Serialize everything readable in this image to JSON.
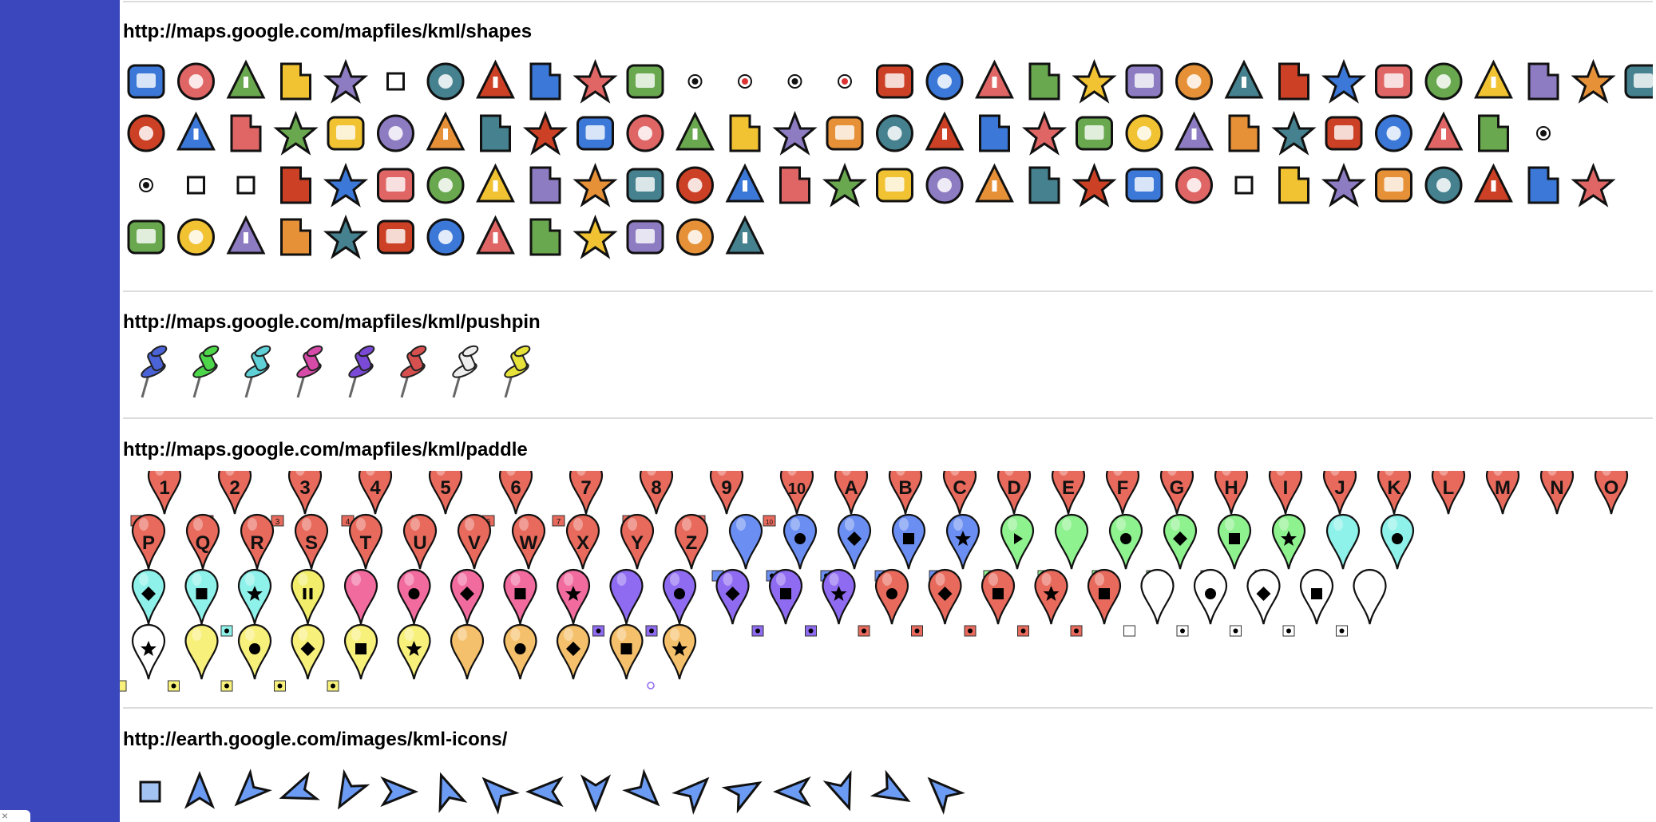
{
  "sections": [
    {
      "id": "shapes",
      "title": "http://maps.google.com/mapfiles/kml/shapes"
    },
    {
      "id": "pushpin",
      "title": "http://maps.google.com/mapfiles/kml/pushpin"
    },
    {
      "id": "paddle",
      "title": "http://maps.google.com/mapfiles/kml/paddle"
    },
    {
      "id": "kml-icons",
      "title": "http://earth.google.com/images/kml-icons/"
    }
  ],
  "close_glyph": "×",
  "shapes_icons": [
    "airport",
    "arrow-reverse",
    "arrow",
    "arts",
    "bars",
    "cabs-small-square",
    "bus",
    "cabs",
    "camera",
    "campfire",
    "campground",
    "star-small-1",
    "star-small-2",
    "star-small-3",
    "star-small-4",
    "caution",
    "church",
    "coffee",
    "convenience",
    "cross-hairs-1",
    "cross-hairs-2",
    "cycling",
    "dining",
    "dollar",
    "donut",
    "earthquake",
    "electronics",
    "euro",
    "falling-rocks",
    "ferry",
    "firedept",
    "fishing",
    "flag",
    "forbidden",
    "gas-stations",
    "golf",
    "grocery",
    "heliport",
    "highway",
    "hiker",
    "homegardenbusiness",
    "horsebackriding",
    "hospitals",
    "info",
    "info-i",
    "info-circle",
    "lodging",
    "man",
    "marina",
    "mechanic",
    "motorcycling",
    "mountains",
    "movies",
    "open-diamond",
    "parking-lot",
    "parks",
    "pharmacy",
    "phone",
    "picnic",
    "placemark-circle",
    "placemark-dot",
    "placemark-square-small",
    "placemark-square",
    "play",
    "poi",
    "police",
    "polygon",
    "post-office",
    "rail",
    "ranger-station",
    "realestate",
    "interstate",
    "road-shield",
    "shaded-dot",
    "ruler",
    "sailing",
    "ski",
    "flag-small",
    "snowflake-dot",
    "shopping",
    "skiing",
    "snack-bar",
    "square",
    "star",
    "subway",
    "swimming",
    "target",
    "terrain",
    "toilets",
    "trail",
    "tram",
    "triangle",
    "truck",
    "volcano",
    "water",
    "wheel-chair-access-purple",
    "wheel-chair-access",
    "woman",
    "yen",
    "sunny",
    "partly-cloudy",
    "snowflake",
    "rainy",
    "thunderstorm"
  ],
  "pushpin_icons": [
    {
      "name": "blue-pushpin",
      "color": "#4a63d6"
    },
    {
      "name": "grn-pushpin",
      "color": "#4ed64a"
    },
    {
      "name": "ltblu-pushpin",
      "color": "#5ed0d6"
    },
    {
      "name": "pink-pushpin",
      "color": "#d64aa8"
    },
    {
      "name": "purple-pushpin",
      "color": "#7a4ad6"
    },
    {
      "name": "red-pushpin",
      "color": "#d65050"
    },
    {
      "name": "wht-pushpin",
      "color": "#eeeeee"
    },
    {
      "name": "ylw-pushpin",
      "color": "#e6e23a"
    }
  ],
  "paddle_rows": [
    [
      {
        "label": "1",
        "color": "#e86a5c",
        "small": "1"
      },
      {
        "label": "2",
        "color": "#e86a5c",
        "small": "2"
      },
      {
        "label": "3",
        "color": "#e86a5c",
        "small": "3"
      },
      {
        "label": "4",
        "color": "#e86a5c",
        "small": "4"
      },
      {
        "label": "5",
        "color": "#e86a5c",
        "small": "5"
      },
      {
        "label": "6",
        "color": "#e86a5c",
        "small": "6"
      },
      {
        "label": "7",
        "color": "#e86a5c",
        "small": "7"
      },
      {
        "label": "8",
        "color": "#e86a5c",
        "small": "8"
      },
      {
        "label": "9",
        "color": "#e86a5c",
        "small": "9"
      },
      {
        "label": "10",
        "color": "#e86a5c",
        "small": "10"
      },
      {
        "label": "A",
        "color": "#e86a5c"
      },
      {
        "label": "B",
        "color": "#e86a5c"
      },
      {
        "label": "C",
        "color": "#e86a5c"
      },
      {
        "label": "D",
        "color": "#e86a5c"
      },
      {
        "label": "E",
        "color": "#e86a5c"
      },
      {
        "label": "F",
        "color": "#e86a5c"
      },
      {
        "label": "G",
        "color": "#e86a5c"
      },
      {
        "label": "H",
        "color": "#e86a5c"
      },
      {
        "label": "I",
        "color": "#e86a5c"
      },
      {
        "label": "J",
        "color": "#e86a5c"
      },
      {
        "label": "K",
        "color": "#e86a5c"
      },
      {
        "label": "L",
        "color": "#e86a5c"
      },
      {
        "label": "M",
        "color": "#e86a5c"
      },
      {
        "label": "N",
        "color": "#e86a5c"
      },
      {
        "label": "O",
        "color": "#e86a5c"
      }
    ],
    [
      {
        "label": "P",
        "color": "#e86a5c"
      },
      {
        "label": "Q",
        "color": "#e86a5c"
      },
      {
        "label": "R",
        "color": "#e86a5c"
      },
      {
        "label": "S",
        "color": "#e86a5c"
      },
      {
        "label": "T",
        "color": "#e86a5c"
      },
      {
        "label": "U",
        "color": "#e86a5c"
      },
      {
        "label": "V",
        "color": "#e86a5c"
      },
      {
        "label": "W",
        "color": "#e86a5c"
      },
      {
        "label": "X",
        "color": "#e86a5c"
      },
      {
        "label": "Y",
        "color": "#e86a5c"
      },
      {
        "label": "Z",
        "color": "#e86a5c"
      },
      {
        "label": "",
        "color": "#6b8ef2",
        "smallshape": "blank"
      },
      {
        "shape": "circle",
        "color": "#6b8ef2",
        "smallshape": "circle"
      },
      {
        "shape": "diamond",
        "color": "#6b8ef2",
        "smallshape": "diamond"
      },
      {
        "shape": "square",
        "color": "#6b8ef2",
        "smallshape": "square"
      },
      {
        "shape": "star",
        "color": "#6b8ef2",
        "smallshape": "star"
      },
      {
        "shape": "play",
        "color": "#8ef28e",
        "smallshape": "play"
      },
      {
        "label": "",
        "color": "#8ef28e",
        "smallshape": "blank"
      },
      {
        "shape": "circle",
        "color": "#8ef28e",
        "smallshape": "circle"
      },
      {
        "shape": "diamond",
        "color": "#8ef28e",
        "smallshape": "diamond"
      },
      {
        "shape": "square",
        "color": "#8ef28e",
        "smallshape": "square"
      },
      {
        "shape": "star",
        "color": "#8ef28e",
        "smallshape": "star"
      },
      {
        "label": "",
        "color": "#8ef2ea"
      },
      {
        "shape": "circle",
        "color": "#8ef2ea"
      }
    ],
    [
      {
        "shape": "diamond",
        "color": "#8ef2ea"
      },
      {
        "shape": "square",
        "color": "#8ef2ea"
      },
      {
        "shape": "star",
        "color": "#8ef2ea",
        "smallshape": "pause"
      },
      {
        "shape": "pause",
        "color": "#f2ee6b"
      },
      {
        "label": "",
        "color": "#f26b9e"
      },
      {
        "shape": "circle",
        "color": "#f26b9e"
      },
      {
        "shape": "diamond",
        "color": "#f26b9e"
      },
      {
        "shape": "square",
        "color": "#f26b9e"
      },
      {
        "shape": "star",
        "color": "#f26b9e"
      },
      {
        "label": "",
        "color": "#8f6bf2",
        "smallshape": "circle-purple"
      },
      {
        "shape": "circle",
        "color": "#8f6bf2",
        "smallshape": "diamond-purple"
      },
      {
        "shape": "diamond",
        "color": "#8f6bf2"
      },
      {
        "shape": "square",
        "color": "#8f6bf2",
        "smallshape": "square-purple"
      },
      {
        "shape": "star",
        "color": "#8f6bf2",
        "smallshape": "star-purple"
      },
      {
        "shape": "circle",
        "color": "#e86a5c",
        "smallshape": "circle-red"
      },
      {
        "shape": "diamond",
        "color": "#e86a5c",
        "smallshape": "diamond-red"
      },
      {
        "shape": "square",
        "color": "#e86a5c",
        "smallshape": "square-red"
      },
      {
        "shape": "star",
        "color": "#e86a5c",
        "smallshape": "star-red"
      },
      {
        "shape": "square",
        "color": "#e86a5c",
        "smallshape": "square-red"
      },
      {
        "label": "",
        "color": "#ffffff",
        "smallshape": "blank-white"
      },
      {
        "shape": "circle",
        "color": "#ffffff",
        "smallshape": "circle-white"
      },
      {
        "shape": "diamond",
        "color": "#ffffff",
        "smallshape": "diamond-white"
      },
      {
        "shape": "square",
        "color": "#ffffff",
        "smallshape": "square-white"
      },
      {
        "label": "",
        "color": "#ffffff",
        "smallshape": "star-white"
      }
    ],
    [
      {
        "shape": "star",
        "color": "#ffffff",
        "smallshape": "blank-yellow"
      },
      {
        "label": "",
        "color": "#f7f07a",
        "smallshape": "circle-yellow"
      },
      {
        "shape": "circle",
        "color": "#f7f07a",
        "smallshape": "diamond-yellow"
      },
      {
        "shape": "diamond",
        "color": "#f7f07a",
        "smallshape": "square-yellow"
      },
      {
        "shape": "square",
        "color": "#f7f07a",
        "smallshape": "star-yellow"
      },
      {
        "shape": "star",
        "color": "#f7f07a"
      },
      {
        "label": "",
        "color": "#f5c06b"
      },
      {
        "shape": "circle",
        "color": "#f5c06b"
      },
      {
        "shape": "diamond",
        "color": "#f5c06b"
      },
      {
        "shape": "square",
        "color": "#f5c06b"
      },
      {
        "shape": "star",
        "color": "#f5c06b",
        "smallshape": "route"
      }
    ]
  ],
  "kml_icons": [
    "square",
    "arrow-n",
    "arrow-sw",
    "arrow-wsw",
    "arrow-ssw",
    "arrow-e",
    "arrow-nnw",
    "arrow-nw",
    "arrow-w",
    "arrow-s",
    "arrow-se",
    "arrow-ne",
    "arrow-ene",
    "arrow-w2",
    "arrow-s2",
    "arrow-se2",
    "arrow-nw2"
  ]
}
